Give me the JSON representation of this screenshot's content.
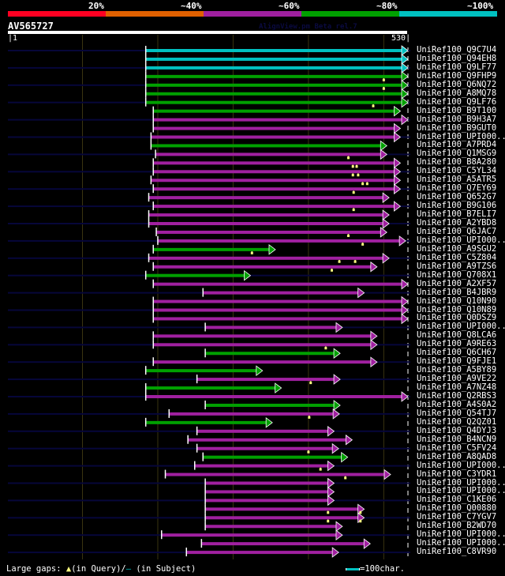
{
  "legend": {
    "labels": [
      "20%",
      "~40%",
      "~60%",
      "~80%",
      "~100%"
    ],
    "colors": [
      "#ff0022",
      "#e06000",
      "#a020a0",
      "#00a000",
      "#00c0c0"
    ]
  },
  "query": {
    "name": "AV565727",
    "watermark": "AlignView.pm Beta rel.7",
    "start_label": "1",
    "end_label": "530",
    "length": 530
  },
  "hits": [
    {
      "label": "UniRef100_Q9C7U4",
      "cls": 4,
      "start": 184,
      "end": 530,
      "stripe": true,
      "qgaps": []
    },
    {
      "label": "UniRef100_Q94EH8",
      "cls": 4,
      "start": 184,
      "end": 530,
      "stripe": false,
      "qgaps": []
    },
    {
      "label": "UniRef100_Q9LF77",
      "cls": 4,
      "start": 184,
      "end": 530,
      "stripe": true,
      "qgaps": []
    },
    {
      "label": "UniRef100_Q9FHP9",
      "cls": 3,
      "start": 184,
      "end": 530,
      "stripe": false,
      "qgaps": [
        500
      ]
    },
    {
      "label": "UniRef100_Q6NQ72",
      "cls": 3,
      "start": 184,
      "end": 530,
      "stripe": true,
      "qgaps": [
        500
      ]
    },
    {
      "label": "UniRef100_A8MQ78",
      "cls": 3,
      "start": 184,
      "end": 530,
      "stripe": false,
      "qgaps": []
    },
    {
      "label": "UniRef100_Q9LF76",
      "cls": 3,
      "start": 184,
      "end": 530,
      "stripe": true,
      "qgaps": [
        486
      ]
    },
    {
      "label": "UniRef100_B9T100",
      "cls": 3,
      "start": 194,
      "end": 520,
      "stripe": false,
      "qgaps": []
    },
    {
      "label": "UniRef100_B9H3A7",
      "cls": 2,
      "start": 194,
      "end": 530,
      "stripe": true,
      "qgaps": []
    },
    {
      "label": "UniRef100_B9GUT0",
      "cls": 2,
      "start": 194,
      "end": 520,
      "stripe": false,
      "qgaps": []
    },
    {
      "label": "UniRef100_UPI000..",
      "cls": 2,
      "start": 191,
      "end": 520,
      "stripe": true,
      "qgaps": []
    },
    {
      "label": "UniRef100_A7PRD4",
      "cls": 3,
      "start": 191,
      "end": 502,
      "stripe": false,
      "qgaps": []
    },
    {
      "label": "UniRef100_Q1MSG9",
      "cls": 2,
      "start": 197,
      "end": 502,
      "stripe": true,
      "qgaps": [
        453
      ]
    },
    {
      "label": "UniRef100_B8A280",
      "cls": 2,
      "start": 194,
      "end": 520,
      "stripe": false,
      "qgaps": [
        459,
        464
      ]
    },
    {
      "label": "UniRef100_C5YL34",
      "cls": 2,
      "start": 194,
      "end": 520,
      "stripe": true,
      "qgaps": [
        459,
        466
      ]
    },
    {
      "label": "UniRef100_A5ATR5",
      "cls": 2,
      "start": 191,
      "end": 520,
      "stripe": false,
      "qgaps": [
        472,
        478
      ]
    },
    {
      "label": "UniRef100_Q7EY69",
      "cls": 2,
      "start": 194,
      "end": 520,
      "stripe": true,
      "qgaps": [
        460
      ]
    },
    {
      "label": "UniRef100_Q652G7",
      "cls": 2,
      "start": 188,
      "end": 505,
      "stripe": false,
      "qgaps": []
    },
    {
      "label": "UniRef100_B9G106",
      "cls": 2,
      "start": 194,
      "end": 520,
      "stripe": true,
      "qgaps": [
        460
      ]
    },
    {
      "label": "UniRef100_B7ELI7",
      "cls": 2,
      "start": 188,
      "end": 505,
      "stripe": false,
      "qgaps": []
    },
    {
      "label": "UniRef100_A2YBD8",
      "cls": 2,
      "start": 188,
      "end": 505,
      "stripe": true,
      "qgaps": []
    },
    {
      "label": "UniRef100_Q6JAC7",
      "cls": 2,
      "start": 198,
      "end": 502,
      "stripe": false,
      "qgaps": [
        453
      ]
    },
    {
      "label": "UniRef100_UPI000..",
      "cls": 2,
      "start": 200,
      "end": 527,
      "stripe": true,
      "qgaps": [
        472
      ]
    },
    {
      "label": "UniRef100_A9SGU2",
      "cls": 3,
      "start": 194,
      "end": 354,
      "stripe": false,
      "qgaps": [
        325
      ]
    },
    {
      "label": "UniRef100_C5Z804",
      "cls": 2,
      "start": 188,
      "end": 505,
      "stripe": true,
      "qgaps": [
        441,
        462
      ]
    },
    {
      "label": "UniRef100_A9TZS6",
      "cls": 2,
      "start": 194,
      "end": 489,
      "stripe": false,
      "qgaps": [
        431
      ]
    },
    {
      "label": "UniRef100_Q708X1",
      "cls": 3,
      "start": 184,
      "end": 321,
      "stripe": true,
      "qgaps": []
    },
    {
      "label": "UniRef100_A2XF57",
      "cls": 2,
      "start": 194,
      "end": 530,
      "stripe": false,
      "qgaps": []
    },
    {
      "label": "UniRef100_B4JBR9",
      "cls": 2,
      "start": 260,
      "end": 472,
      "stripe": true,
      "qgaps": []
    },
    {
      "label": "UniRef100_Q10N90",
      "cls": 2,
      "start": 194,
      "end": 530,
      "stripe": false,
      "qgaps": []
    },
    {
      "label": "UniRef100_Q10N89",
      "cls": 2,
      "start": 194,
      "end": 530,
      "stripe": true,
      "qgaps": []
    },
    {
      "label": "UniRef100_Q0DSZ9",
      "cls": 2,
      "start": 194,
      "end": 530,
      "stripe": false,
      "qgaps": []
    },
    {
      "label": "UniRef100_UPI000..",
      "cls": 2,
      "start": 263,
      "end": 443,
      "stripe": true,
      "qgaps": []
    },
    {
      "label": "UniRef100_Q8LCA6",
      "cls": 2,
      "start": 194,
      "end": 489,
      "stripe": false,
      "qgaps": []
    },
    {
      "label": "UniRef100_A9RE63",
      "cls": 2,
      "start": 194,
      "end": 489,
      "stripe": true,
      "qgaps": [
        423
      ]
    },
    {
      "label": "UniRef100_Q6CH67",
      "cls": 3,
      "start": 263,
      "end": 440,
      "stripe": false,
      "qgaps": []
    },
    {
      "label": "UniRef100_Q9FJE1",
      "cls": 2,
      "start": 194,
      "end": 489,
      "stripe": true,
      "qgaps": []
    },
    {
      "label": "UniRef100_A5BY89",
      "cls": 3,
      "start": 184,
      "end": 337,
      "stripe": false,
      "qgaps": []
    },
    {
      "label": "UniRef100_A9VE22",
      "cls": 2,
      "start": 252,
      "end": 440,
      "stripe": true,
      "qgaps": [
        403
      ]
    },
    {
      "label": "UniRef100_A7NZ48",
      "cls": 3,
      "start": 184,
      "end": 362,
      "stripe": false,
      "qgaps": []
    },
    {
      "label": "UniRef100_Q2RBS3",
      "cls": 2,
      "start": 184,
      "end": 530,
      "stripe": true,
      "qgaps": []
    },
    {
      "label": "UniRef100_A4S0A2",
      "cls": 3,
      "start": 263,
      "end": 440,
      "stripe": false,
      "qgaps": []
    },
    {
      "label": "UniRef100_Q54TJ7",
      "cls": 2,
      "start": 215,
      "end": 439,
      "stripe": true,
      "qgaps": [
        401
      ]
    },
    {
      "label": "UniRef100_Q2QZ01",
      "cls": 3,
      "start": 184,
      "end": 350,
      "stripe": false,
      "qgaps": []
    },
    {
      "label": "UniRef100_Q4DYJ3",
      "cls": 2,
      "start": 252,
      "end": 432,
      "stripe": true,
      "qgaps": []
    },
    {
      "label": "UniRef100_B4NCN9",
      "cls": 2,
      "start": 240,
      "end": 456,
      "stripe": false,
      "qgaps": []
    },
    {
      "label": "UniRef100_C5FV24",
      "cls": 2,
      "start": 252,
      "end": 438,
      "stripe": true,
      "qgaps": [
        400
      ]
    },
    {
      "label": "UniRef100_A8QAD8",
      "cls": 3,
      "start": 260,
      "end": 450,
      "stripe": false,
      "qgaps": []
    },
    {
      "label": "UniRef100_UPI000..",
      "cls": 2,
      "start": 249,
      "end": 432,
      "stripe": true,
      "qgaps": [
        416
      ]
    },
    {
      "label": "UniRef100_C3YDR1",
      "cls": 2,
      "start": 210,
      "end": 507,
      "stripe": false,
      "qgaps": [
        449
      ]
    },
    {
      "label": "UniRef100_UPI000..",
      "cls": 2,
      "start": 263,
      "end": 432,
      "stripe": true,
      "qgaps": []
    },
    {
      "label": "UniRef100_UPI000..",
      "cls": 2,
      "start": 263,
      "end": 432,
      "stripe": false,
      "qgaps": []
    },
    {
      "label": "UniRef100_C1KE06",
      "cls": 2,
      "start": 263,
      "end": 432,
      "stripe": true,
      "qgaps": []
    },
    {
      "label": "UniRef100_Q00880",
      "cls": 2,
      "start": 263,
      "end": 472,
      "stripe": false,
      "qgaps": [
        426,
        469
      ]
    },
    {
      "label": "UniRef100_C7YGV7",
      "cls": 2,
      "start": 263,
      "end": 472,
      "stripe": true,
      "qgaps": [
        426,
        469
      ]
    },
    {
      "label": "UniRef100_B2WD70",
      "cls": 2,
      "start": 263,
      "end": 443,
      "stripe": false,
      "qgaps": []
    },
    {
      "label": "UniRef100_UPI000..",
      "cls": 2,
      "start": 205,
      "end": 443,
      "stripe": true,
      "qgaps": []
    },
    {
      "label": "UniRef100_UPI000..",
      "cls": 2,
      "start": 258,
      "end": 480,
      "stripe": false,
      "qgaps": []
    },
    {
      "label": "UniRef100_C8VR90",
      "cls": 2,
      "start": 238,
      "end": 438,
      "stripe": true,
      "qgaps": []
    }
  ],
  "footer": {
    "gaps_label": "Large gaps:",
    "query_gap": "(in Query)/",
    "subject_gap": "(in Subject)",
    "scale_label": "=100char."
  }
}
